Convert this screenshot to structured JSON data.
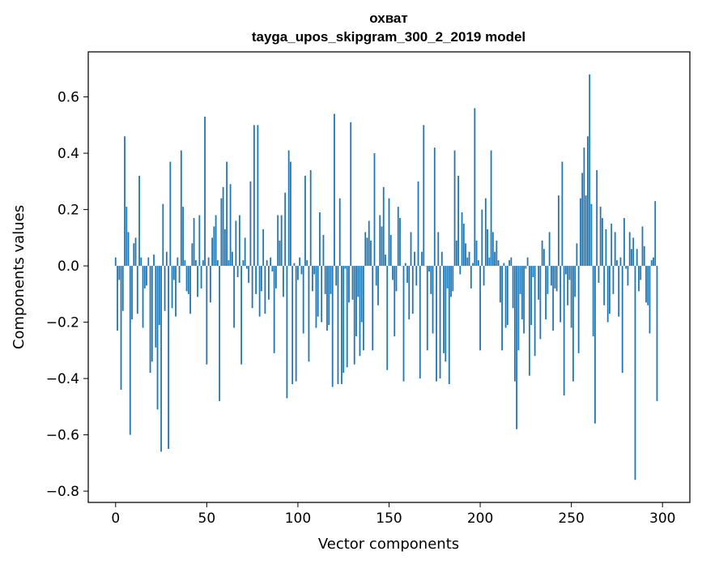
{
  "chart_data": {
    "type": "bar",
    "title": "охват",
    "subtitle": "tayga_upos_skipgram_300_2_2019 model",
    "xlabel": "Vector components",
    "ylabel": "Components values",
    "xlim": [
      -15,
      315
    ],
    "ylim": [
      -0.84,
      0.76
    ],
    "xticks": [
      0,
      50,
      100,
      150,
      200,
      250,
      300
    ],
    "xtick_labels": [
      "0",
      "50",
      "100",
      "150",
      "200",
      "250",
      "300"
    ],
    "yticks": [
      -0.8,
      -0.6,
      -0.4,
      -0.2,
      0.0,
      0.2,
      0.4,
      0.6
    ],
    "ytick_labels": [
      "−0.8",
      "−0.6",
      "−0.4",
      "−0.2",
      "0.0",
      "0.2",
      "0.4",
      "0.6"
    ],
    "grid": false,
    "bar_color": "#1f77b4",
    "values": [
      0.03,
      -0.23,
      -0.05,
      -0.44,
      -0.16,
      0.46,
      0.21,
      0.12,
      -0.6,
      -0.19,
      0.08,
      0.1,
      -0.17,
      0.32,
      0.03,
      -0.22,
      -0.08,
      -0.07,
      0.03,
      -0.38,
      -0.34,
      0.04,
      -0.29,
      -0.51,
      -0.21,
      -0.66,
      0.22,
      -0.16,
      0.05,
      -0.65,
      0.37,
      -0.15,
      -0.05,
      -0.18,
      0.03,
      -0.06,
      0.41,
      0.21,
      0.02,
      -0.09,
      -0.1,
      -0.17,
      0.08,
      0.17,
      0.02,
      -0.11,
      0.18,
      -0.08,
      0.02,
      0.53,
      -0.35,
      0.03,
      -0.13,
      0.1,
      0.14,
      0.18,
      0.02,
      -0.48,
      0.24,
      0.28,
      0.13,
      0.37,
      0.02,
      0.29,
      0.05,
      -0.22,
      0.16,
      -0.04,
      0.18,
      -0.35,
      0.02,
      0.1,
      -0.01,
      -0.06,
      0.3,
      -0.15,
      0.5,
      -0.1,
      0.5,
      -0.18,
      -0.09,
      0.13,
      -0.17,
      0.02,
      -0.12,
      0.03,
      -0.02,
      -0.31,
      -0.08,
      0.18,
      0.09,
      0.18,
      -0.11,
      0.26,
      -0.47,
      0.41,
      0.37,
      -0.42,
      0.01,
      -0.41,
      -0.05,
      0.03,
      -0.03,
      -0.24,
      0.32,
      0.02,
      -0.34,
      0.34,
      -0.09,
      -0.03,
      -0.22,
      -0.18,
      0.19,
      -0.2,
      0.11,
      -0.1,
      -0.23,
      -0.21,
      -0.1,
      -0.43,
      0.54,
      -0.07,
      -0.42,
      0.24,
      -0.42,
      -0.38,
      -0.01,
      -0.36,
      -0.13,
      0.51,
      -0.12,
      -0.35,
      -0.25,
      -0.11,
      -0.32,
      -0.2,
      -0.3,
      0.12,
      0.1,
      0.16,
      0.09,
      -0.3,
      0.4,
      -0.07,
      -0.14,
      0.18,
      0.14,
      0.28,
      0.04,
      -0.37,
      0.24,
      0.11,
      -0.05,
      -0.25,
      -0.09,
      0.21,
      0.17,
      0.0,
      -0.41,
      0.01,
      -0.06,
      -0.19,
      0.12,
      -0.17,
      0.05,
      -0.07,
      0.3,
      -0.4,
      0.05,
      0.5,
      0.0,
      -0.3,
      -0.02,
      -0.1,
      -0.24,
      0.42,
      -0.41,
      0.12,
      -0.4,
      0.05,
      -0.31,
      -0.34,
      -0.08,
      -0.42,
      -0.11,
      -0.09,
      0.41,
      0.09,
      0.32,
      -0.03,
      0.19,
      0.15,
      0.08,
      0.03,
      0.05,
      -0.08,
      0.01,
      0.56,
      0.09,
      0.02,
      -0.3,
      0.2,
      -0.07,
      0.24,
      0.13,
      0.03,
      0.41,
      0.12,
      0.05,
      0.09,
      0.02,
      -0.13,
      -0.3,
      0.01,
      -0.22,
      -0.21,
      0.02,
      0.03,
      -0.15,
      -0.41,
      -0.58,
      -0.3,
      -0.1,
      -0.19,
      -0.24,
      -0.01,
      0.03,
      -0.39,
      -0.21,
      -0.04,
      -0.32,
      0.0,
      -0.12,
      -0.26,
      0.09,
      0.06,
      -0.19,
      -0.1,
      0.12,
      -0.07,
      -0.23,
      -0.08,
      -0.09,
      0.25,
      -0.2,
      0.37,
      -0.46,
      -0.03,
      -0.14,
      -0.05,
      -0.22,
      -0.41,
      -0.11,
      0.08,
      -0.31,
      0.24,
      0.33,
      0.42,
      0.25,
      0.46,
      0.68,
      0.22,
      -0.25,
      -0.56,
      0.34,
      -0.06,
      0.21,
      0.17,
      -0.14,
      0.13,
      -0.2,
      -0.17,
      0.15,
      -0.1,
      0.12,
      0.02,
      -0.18,
      0.03,
      -0.38,
      0.17,
      -0.01,
      -0.07,
      0.12,
      0.06,
      0.1,
      -0.76,
      0.06,
      -0.09,
      -0.05,
      0.14,
      0.07,
      -0.13,
      -0.14,
      -0.24,
      0.02,
      0.03,
      0.23,
      -0.48
    ]
  }
}
